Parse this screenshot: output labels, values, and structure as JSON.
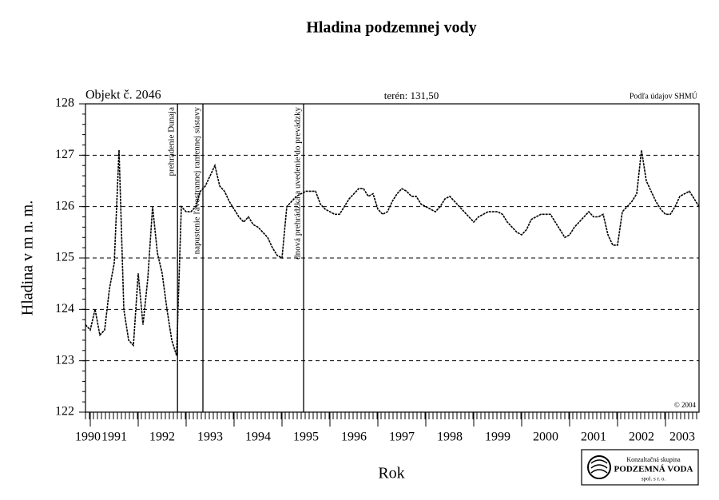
{
  "chart_data": {
    "type": "line",
    "title": "Hladina podzemnej vody",
    "object_label": "Objekt č. 2046",
    "terrain_label": "terén: 131,50",
    "source_label": "Podľa údajov SHMÚ",
    "copyright": "© 2004",
    "xlabel": "Rok",
    "ylabel": "Hladina v m n. m.",
    "logo": {
      "line1": "Konzultačná skupina",
      "line2": "PODZEMNÁ VODA",
      "line3": "spol. s r. o."
    },
    "xlim": [
      1990.9,
      2003.7
    ],
    "xticks": [
      1990,
      1991,
      1992,
      1993,
      1994,
      1995,
      1996,
      1997,
      1998,
      1999,
      2000,
      2001,
      2002,
      2003
    ],
    "ylim": [
      122,
      128
    ],
    "yticks": [
      122,
      123,
      124,
      125,
      126,
      127,
      128
    ],
    "grid": true,
    "events": [
      {
        "x": 1992.82,
        "label": "prehradenie Dunaja"
      },
      {
        "x": 1993.35,
        "label": "napustenie ľavostrannej ramennej sústavy"
      },
      {
        "x": 1995.45,
        "label": "dnová prehrádzka a uvedenie do prevádzky"
      }
    ],
    "x": [
      1990.9,
      1991,
      1991.1,
      1991.2,
      1991.3,
      1991.4,
      1991.5,
      1991.6,
      1991.7,
      1991.8,
      1991.9,
      1992,
      1992.1,
      1992.2,
      1992.3,
      1992.4,
      1992.5,
      1992.6,
      1992.7,
      1992.8,
      1992.9,
      1993,
      1993.1,
      1993.2,
      1993.3,
      1993.4,
      1993.5,
      1993.6,
      1993.7,
      1993.8,
      1993.9,
      1994,
      1994.1,
      1994.2,
      1994.3,
      1994.4,
      1994.5,
      1994.6,
      1994.7,
      1994.8,
      1994.9,
      1995,
      1995.1,
      1995.2,
      1995.3,
      1995.4,
      1995.5,
      1995.6,
      1995.7,
      1995.8,
      1995.9,
      1996,
      1996.1,
      1996.2,
      1996.3,
      1996.4,
      1996.5,
      1996.6,
      1996.7,
      1996.8,
      1996.9,
      1997,
      1997.1,
      1997.2,
      1997.3,
      1997.4,
      1997.5,
      1997.6,
      1997.7,
      1997.8,
      1997.9,
      1998,
      1998.1,
      1998.2,
      1998.3,
      1998.4,
      1998.5,
      1998.6,
      1998.7,
      1998.8,
      1998.9,
      1999,
      1999.1,
      1999.2,
      1999.3,
      1999.4,
      1999.5,
      1999.6,
      1999.7,
      1999.8,
      1999.9,
      2000,
      2000.1,
      2000.2,
      2000.3,
      2000.4,
      2000.5,
      2000.6,
      2000.7,
      2000.8,
      2000.9,
      2001,
      2001.1,
      2001.2,
      2001.3,
      2001.4,
      2001.5,
      2001.6,
      2001.7,
      2001.8,
      2001.9,
      2002,
      2002.1,
      2002.2,
      2002.3,
      2002.4,
      2002.5,
      2002.6,
      2002.7,
      2002.8,
      2002.9,
      2003,
      2003.1,
      2003.2,
      2003.3,
      2003.4,
      2003.5,
      2003.6,
      2003.7
    ],
    "series": [
      {
        "name": "Hladina",
        "color": "#000000",
        "values": [
          123.7,
          123.6,
          124.0,
          123.5,
          123.6,
          124.4,
          124.9,
          127.1,
          124.0,
          123.4,
          123.3,
          124.7,
          123.7,
          124.6,
          126.0,
          125.1,
          124.7,
          124.0,
          123.4,
          123.1,
          126.0,
          125.9,
          125.9,
          126.0,
          126.3,
          126.4,
          126.6,
          126.8,
          126.4,
          126.3,
          126.1,
          125.95,
          125.8,
          125.7,
          125.8,
          125.65,
          125.6,
          125.5,
          125.4,
          125.2,
          125.05,
          125.0,
          126.0,
          126.1,
          126.2,
          126.25,
          126.3,
          126.3,
          126.3,
          126.05,
          125.95,
          125.9,
          125.85,
          125.85,
          126.0,
          126.15,
          126.25,
          126.35,
          126.35,
          126.2,
          126.25,
          125.95,
          125.85,
          125.9,
          126.1,
          126.25,
          126.35,
          126.3,
          126.2,
          126.2,
          126.05,
          126.0,
          125.95,
          125.9,
          126.0,
          126.15,
          126.2,
          126.1,
          126.0,
          125.9,
          125.8,
          125.7,
          125.8,
          125.85,
          125.9,
          125.9,
          125.9,
          125.85,
          125.7,
          125.6,
          125.5,
          125.45,
          125.55,
          125.75,
          125.8,
          125.85,
          125.85,
          125.85,
          125.7,
          125.55,
          125.4,
          125.45,
          125.6,
          125.7,
          125.8,
          125.9,
          125.8,
          125.8,
          125.85,
          125.45,
          125.25,
          125.25,
          125.9,
          126.0,
          126.1,
          126.25,
          127.1,
          126.5,
          126.3,
          126.1,
          125.95,
          125.85,
          125.85,
          126.0,
          126.2,
          126.25,
          126.3,
          126.15,
          126.0
        ]
      }
    ]
  }
}
